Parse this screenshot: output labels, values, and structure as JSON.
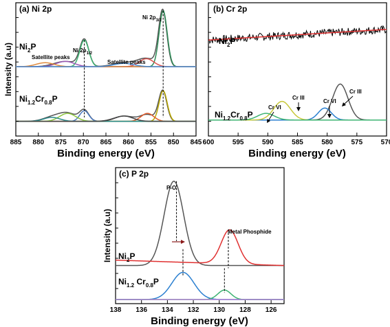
{
  "chart_data": [
    {
      "panel": "ni",
      "type": "line",
      "title": "(a) Ni 2p",
      "xlabel": "Binding energy (eV)",
      "ylabel": "Intensity (a.u)",
      "xlim": [
        885,
        845
      ],
      "x_reversed": true,
      "xticks": [
        "885",
        "880",
        "875",
        "870",
        "865",
        "860",
        "855",
        "850",
        "845"
      ],
      "samples": [
        {
          "label": "Ni",
          "sub": "2",
          "suffix": "P",
          "full": "Ni2P"
        },
        {
          "label": "Ni",
          "sub": "1.2",
          "mid": "Cr",
          "sub2": "0.8",
          "suffix": "P",
          "full": "Ni1.2Cr0.8P"
        }
      ],
      "annotations": [
        {
          "text": "Satellite peaks",
          "full": "Satellite peaks"
        },
        {
          "text": "Satellite peaks",
          "full": "Satellite peaks"
        },
        {
          "text": "Ni 2p",
          "sub": "1/2",
          "full": "Ni 2p1/2"
        },
        {
          "text": "Ni 2p",
          "sub": "3/2",
          "full": "Ni 2p3/2"
        }
      ],
      "dashed_markers": [
        869.8,
        852.3
      ],
      "series": [
        {
          "sample": "Ni2P",
          "component": "envelope",
          "color": "#555555",
          "baseline": 0.52,
          "peaks": [
            [
              852.4,
              0.42,
              0.9
            ],
            [
              869.8,
              0.2,
              1.0
            ],
            [
              856.0,
              0.06,
              2.0
            ],
            [
              874.0,
              0.04,
              2.5
            ],
            [
              861.0,
              0.03,
              2.5
            ]
          ]
        },
        {
          "sample": "Ni2P",
          "component": "Ni 2p3/2",
          "color": "#2e8b57",
          "baseline": 0.52,
          "peaks": [
            [
              852.3,
              0.42,
              0.9
            ]
          ]
        },
        {
          "sample": "Ni2P",
          "component": "Ni 2p1/2",
          "color": "#3cb371",
          "baseline": 0.52,
          "peaks": [
            [
              869.8,
              0.2,
              1.0
            ]
          ]
        },
        {
          "sample": "Ni2P",
          "component": "Ni2+ 3/2",
          "color": "#d9534f",
          "baseline": 0.52,
          "peaks": [
            [
              856.0,
              0.06,
              1.6
            ]
          ]
        },
        {
          "sample": "Ni2P",
          "component": "satellite",
          "color": "#9b59b6",
          "baseline": 0.52,
          "peaks": [
            [
              874.0,
              0.04,
              2.0
            ]
          ]
        },
        {
          "sample": "Ni2P",
          "component": "satellite",
          "color": "#e08a3c",
          "baseline": 0.52,
          "peaks": [
            [
              878.5,
              0.03,
              2.0
            ]
          ]
        },
        {
          "sample": "Ni2P",
          "component": "satellite",
          "color": "#4a90d9",
          "baseline": 0.52,
          "peaks": [
            [
              861.0,
              0.025,
              2.2
            ]
          ]
        },
        {
          "sample": "Ni1.2Cr0.8P",
          "component": "envelope",
          "color": "#555555",
          "baseline": 0.11,
          "peaks": [
            [
              852.4,
              0.23,
              0.9
            ],
            [
              869.8,
              0.08,
              1.0
            ],
            [
              855.8,
              0.05,
              1.6
            ],
            [
              873.5,
              0.06,
              2.0
            ],
            [
              861.0,
              0.04,
              2.2
            ],
            [
              877.0,
              0.03,
              2.0
            ]
          ]
        },
        {
          "sample": "Ni1.2Cr0.8P",
          "component": "Ni 2p3/2",
          "color": "#b8a600",
          "baseline": 0.11,
          "peaks": [
            [
              852.3,
              0.23,
              0.9
            ]
          ]
        },
        {
          "sample": "Ni1.2Cr0.8P",
          "component": "Ni 2p1/2",
          "color": "#4a78c0",
          "baseline": 0.11,
          "peaks": [
            [
              869.8,
              0.08,
              1.0
            ]
          ]
        },
        {
          "sample": "Ni1.2Cr0.8P",
          "component": "Ni2+ 3/2",
          "color": "#e05a2a",
          "baseline": 0.11,
          "peaks": [
            [
              855.8,
              0.06,
              1.4
            ]
          ]
        },
        {
          "sample": "Ni1.2Cr0.8P",
          "component": "satellite",
          "color": "#8dc63f",
          "baseline": 0.11,
          "peaks": [
            [
              873.5,
              0.06,
              1.8
            ]
          ]
        },
        {
          "sample": "Ni1.2Cr0.8P",
          "component": "satellite",
          "color": "#2a8a8a",
          "baseline": 0.11,
          "peaks": [
            [
              877.0,
              0.03,
              1.8
            ]
          ]
        },
        {
          "sample": "Ni1.2Cr0.8P",
          "component": "satellite",
          "color": "#444444",
          "baseline": 0.11,
          "peaks": [
            [
              861.0,
              0.04,
              2.0
            ]
          ]
        }
      ]
    },
    {
      "panel": "cr",
      "type": "line",
      "title": "(b) Cr 2p",
      "xlabel": "Binding energy (eV)",
      "xlim": [
        600,
        570
      ],
      "x_reversed": true,
      "xticks": [
        "600",
        "595",
        "590",
        "585",
        "580",
        "575",
        "570"
      ],
      "samples": [
        {
          "label": "Ni",
          "sub": "2",
          "suffix": "P",
          "full": "Ni2P"
        },
        {
          "label": "Ni",
          "sub": "1.2",
          "mid": "Cr",
          "sub2": "0.8",
          "suffix": "P",
          "full": "Ni1.2Cr0.8P"
        }
      ],
      "annotations": [
        {
          "text": "Cr VI",
          "full": "Cr VI"
        },
        {
          "text": "Cr III",
          "full": "Cr III"
        },
        {
          "text": "Cr VI",
          "full": "Cr VI"
        },
        {
          "text": "Cr III",
          "full": "Cr III"
        }
      ],
      "series": [
        {
          "sample": "Ni2P",
          "component": "raw",
          "color": "#000000",
          "noisy": true,
          "y_start": 0.72,
          "y_end": 0.8
        },
        {
          "sample": "Ni2P",
          "component": "fit",
          "color": "#e03030",
          "y_start": 0.72,
          "y_end": 0.8
        },
        {
          "sample": "Ni1.2Cr0.8P",
          "component": "Cr III 2p3/2",
          "color": "#555555",
          "baseline": 0.12,
          "peaks": [
            [
              577.8,
              0.27,
              1.3
            ]
          ]
        },
        {
          "sample": "Ni1.2Cr0.8P",
          "component": "Cr VI 2p3/2",
          "color": "#2a7fd0",
          "baseline": 0.12,
          "peaks": [
            [
              580.4,
              0.09,
              1.1
            ]
          ]
        },
        {
          "sample": "Ni1.2Cr0.8P",
          "component": "Cr III 2p1/2",
          "color": "#c8c83a",
          "baseline": 0.12,
          "peaks": [
            [
              587.6,
              0.14,
              1.4
            ]
          ]
        },
        {
          "sample": "Ni1.2Cr0.8P",
          "component": "Cr VI 2p1/2",
          "color": "#3cb371",
          "baseline": 0.12,
          "peaks": [
            [
              590.3,
              0.05,
              1.4
            ]
          ]
        }
      ]
    },
    {
      "panel": "p",
      "type": "line",
      "title": "(c) P 2p",
      "xlabel": "Binding energy (eV)",
      "ylabel": "Intensity (a.u)",
      "xlim": [
        138,
        125
      ],
      "x_reversed": true,
      "xticks": [
        "138",
        "136",
        "134",
        "132",
        "130",
        "128",
        "126"
      ],
      "samples": [
        {
          "label": "Ni",
          "sub": "2",
          "suffix": "P",
          "full": "Ni2P"
        },
        {
          "label": "Ni",
          "sub": "1.2",
          "mid": " Cr",
          "sub2": "0.8",
          "suffix": "P",
          "full": "Ni1.2 Cr0.8P"
        }
      ],
      "annotations": [
        {
          "text": "P-O",
          "full": "P-O"
        },
        {
          "text": "Metal Phosphide",
          "full": "Metal Phosphide"
        }
      ],
      "dashed_markers": [
        133.3,
        132.8,
        129.3,
        129.6
      ],
      "series": [
        {
          "sample": "Ni2P",
          "component": "P-O",
          "color": "#555555",
          "baseline": 0.28,
          "peaks": [
            [
              133.5,
              0.62,
              0.75
            ]
          ]
        },
        {
          "sample": "Ni2P",
          "component": "Metal Phosphide",
          "color": "#e03030",
          "baseline": 0.28,
          "peaks": [
            [
              129.2,
              0.25,
              0.65
            ]
          ],
          "slope": 0.04
        },
        {
          "sample": "Ni1.2Cr0.8P",
          "component": "P-O",
          "color": "#2a7fd0",
          "baseline": 0.03,
          "peaks": [
            [
              132.8,
              0.2,
              0.85
            ]
          ]
        },
        {
          "sample": "Ni1.2Cr0.8P",
          "component": "Metal Phosphide",
          "color": "#3cb371",
          "baseline": 0.03,
          "peaks": [
            [
              129.6,
              0.07,
              0.5
            ]
          ]
        },
        {
          "sample": "Ni1.2Cr0.8P",
          "component": "baseline",
          "color": "#b07fd0",
          "baseline": 0.03,
          "peaks": []
        }
      ]
    }
  ]
}
